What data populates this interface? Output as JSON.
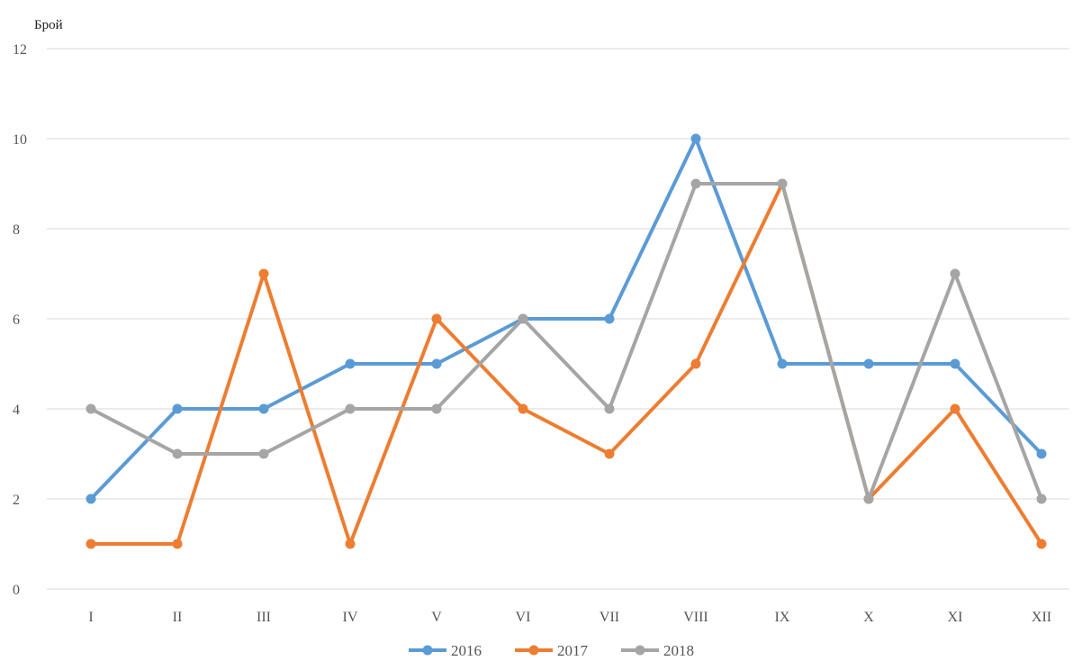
{
  "chart_data": {
    "type": "line",
    "title": "",
    "xlabel": "",
    "ylabel": "Брой",
    "categories": [
      "I",
      "II",
      "III",
      "IV",
      "V",
      "VI",
      "VII",
      "VIII",
      "IX",
      "X",
      "XI",
      "XII"
    ],
    "ylim": [
      0,
      12
    ],
    "yticks": [
      "0",
      "2",
      "4",
      "6",
      "8",
      "10",
      "12"
    ],
    "grid": true,
    "legend_position": "bottom",
    "series": [
      {
        "name": "2016",
        "color": "#5b9bd5",
        "values": [
          2,
          4,
          4,
          5,
          5,
          6,
          6,
          10,
          5,
          5,
          5,
          3
        ]
      },
      {
        "name": "2017",
        "color": "#ed7d31",
        "values": [
          1,
          1,
          7,
          1,
          6,
          4,
          3,
          5,
          9,
          2,
          4,
          1
        ]
      },
      {
        "name": "2018",
        "color": "#a5a5a5",
        "values": [
          4,
          3,
          3,
          4,
          4,
          6,
          4,
          9,
          9,
          2,
          7,
          2
        ]
      }
    ]
  }
}
